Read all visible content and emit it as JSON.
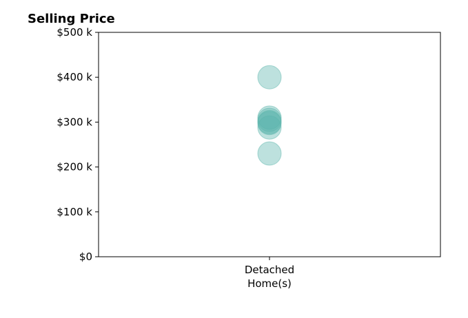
{
  "chart_data": {
    "type": "scatter",
    "title": "Selling Price",
    "xlabel": "",
    "ylabel": "",
    "categories": [
      "Detached\nHome(s)"
    ],
    "ylim": [
      0,
      500000
    ],
    "y_ticks": [
      {
        "value": 0,
        "label": "$0"
      },
      {
        "value": 100000,
        "label": "$100 k"
      },
      {
        "value": 200000,
        "label": "$200 k"
      },
      {
        "value": 300000,
        "label": "$300 k"
      },
      {
        "value": 400000,
        "label": "$400 k"
      },
      {
        "value": 500000,
        "label": "$500 k"
      }
    ],
    "series": [
      {
        "category": "Detached\nHome(s)",
        "values": [
          400000,
          310000,
          305000,
          300000,
          298000,
          288000,
          230000
        ]
      }
    ],
    "grid": false,
    "legend": "none",
    "marker_color": "#5bb5ac",
    "marker_opacity": 0.4
  }
}
